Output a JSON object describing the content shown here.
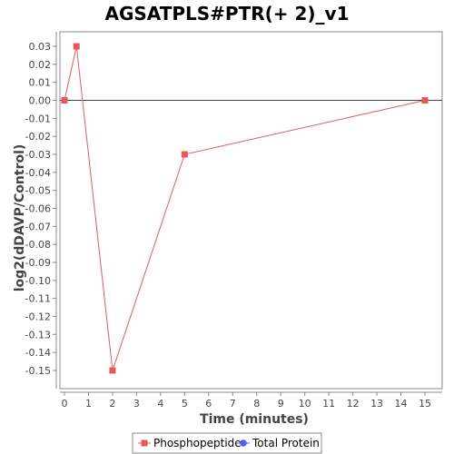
{
  "chart_data": {
    "type": "line",
    "title": "AGSATPLS#PTR(+ 2)_v1",
    "xlabel": "Time (minutes)",
    "ylabel": "log2(dDAVP/Control)",
    "xlim": [
      0,
      15.7
    ],
    "ylim": [
      -0.158,
      0.035
    ],
    "x_ticks": [
      0,
      1,
      2,
      3,
      4,
      5,
      6,
      7,
      8,
      9,
      10,
      11,
      12,
      13,
      14,
      15
    ],
    "y_ticks": [
      0.03,
      0.02,
      0.01,
      0.0,
      -0.01,
      -0.02,
      -0.03,
      -0.04,
      -0.05,
      -0.06,
      -0.07,
      -0.08,
      -0.09,
      -0.1,
      -0.11,
      -0.12,
      -0.13,
      -0.14,
      -0.15
    ],
    "y_tick_labels": [
      "0.03",
      "0.02",
      "0.01",
      "0.00",
      "-0.01",
      "-0.02",
      "-0.03",
      "-0.04",
      "-0.05",
      "-0.06",
      "-0.07",
      "-0.08",
      "-0.09",
      "-0.10",
      "-0.11",
      "-0.12",
      "-0.13",
      "-0.14",
      "-0.15"
    ],
    "zero_line": true,
    "grid": false,
    "legend_position": "bottom-center",
    "series": [
      {
        "name": "Phosphopeptide",
        "color": "#e8585a",
        "marker": "square",
        "x": [
          0,
          0.5,
          2,
          5,
          15
        ],
        "y": [
          0.0,
          0.03,
          -0.15,
          -0.03,
          0.0
        ]
      }
    ],
    "legend": [
      {
        "label": "Phosphopeptide",
        "color": "#e8585a",
        "marker": "square"
      },
      {
        "label": "Total Protein",
        "color": "#5b5bf0",
        "marker": "circle"
      }
    ]
  }
}
